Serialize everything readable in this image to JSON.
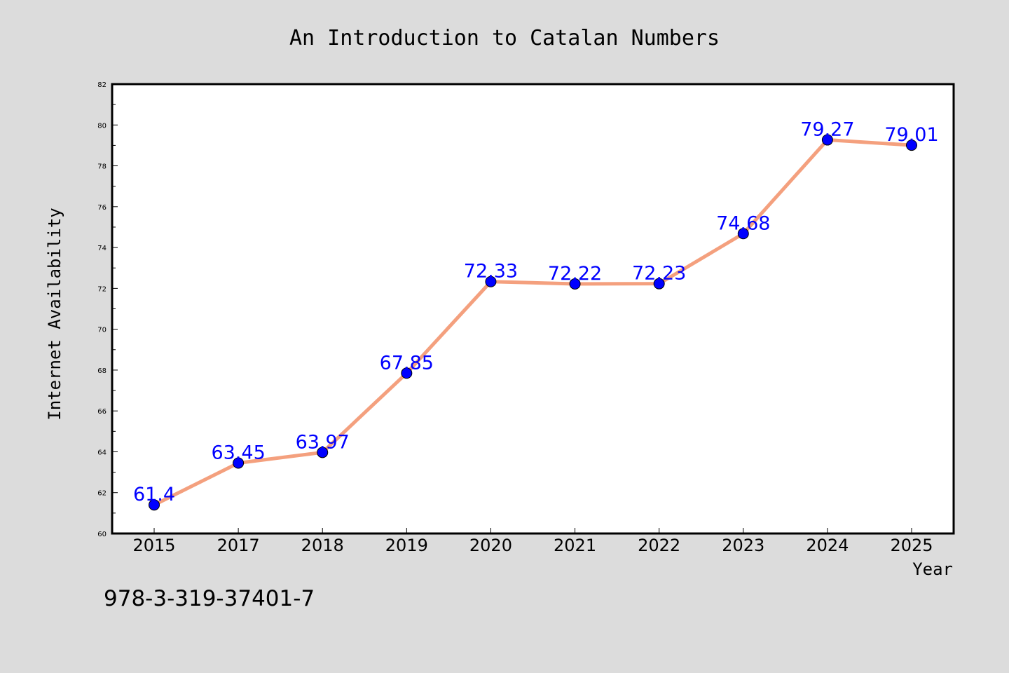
{
  "chart_data": {
    "type": "line",
    "title": "An Introduction to Catalan Numbers",
    "xlabel": "Year",
    "ylabel": "Internet Availability",
    "categories": [
      "2015",
      "2017",
      "2018",
      "2019",
      "2020",
      "2021",
      "2022",
      "2023",
      "2024",
      "2025"
    ],
    "series": [
      {
        "values": [
          61.4,
          63.45,
          63.97,
          67.85,
          72.33,
          72.22,
          72.23,
          74.68,
          79.27,
          79.01
        ],
        "data_labels": [
          "61.4",
          "63.45",
          "63.97",
          "67.85",
          "72.33",
          "72.22",
          "72.23",
          "74.68",
          "79.27",
          "79.01"
        ],
        "line_color": "#f4a07e",
        "marker_color": "#0000ff"
      }
    ],
    "ylim": [
      60,
      82
    ],
    "yticks": [
      "60",
      "62",
      "64",
      "66",
      "68",
      "70",
      "72",
      "74",
      "76",
      "78",
      "80",
      "82"
    ],
    "grid": false,
    "background_color": "#dcdcdc",
    "plot_background_color": "#ffffff"
  },
  "footer": {
    "isbn": "978-3-319-37401-7"
  }
}
